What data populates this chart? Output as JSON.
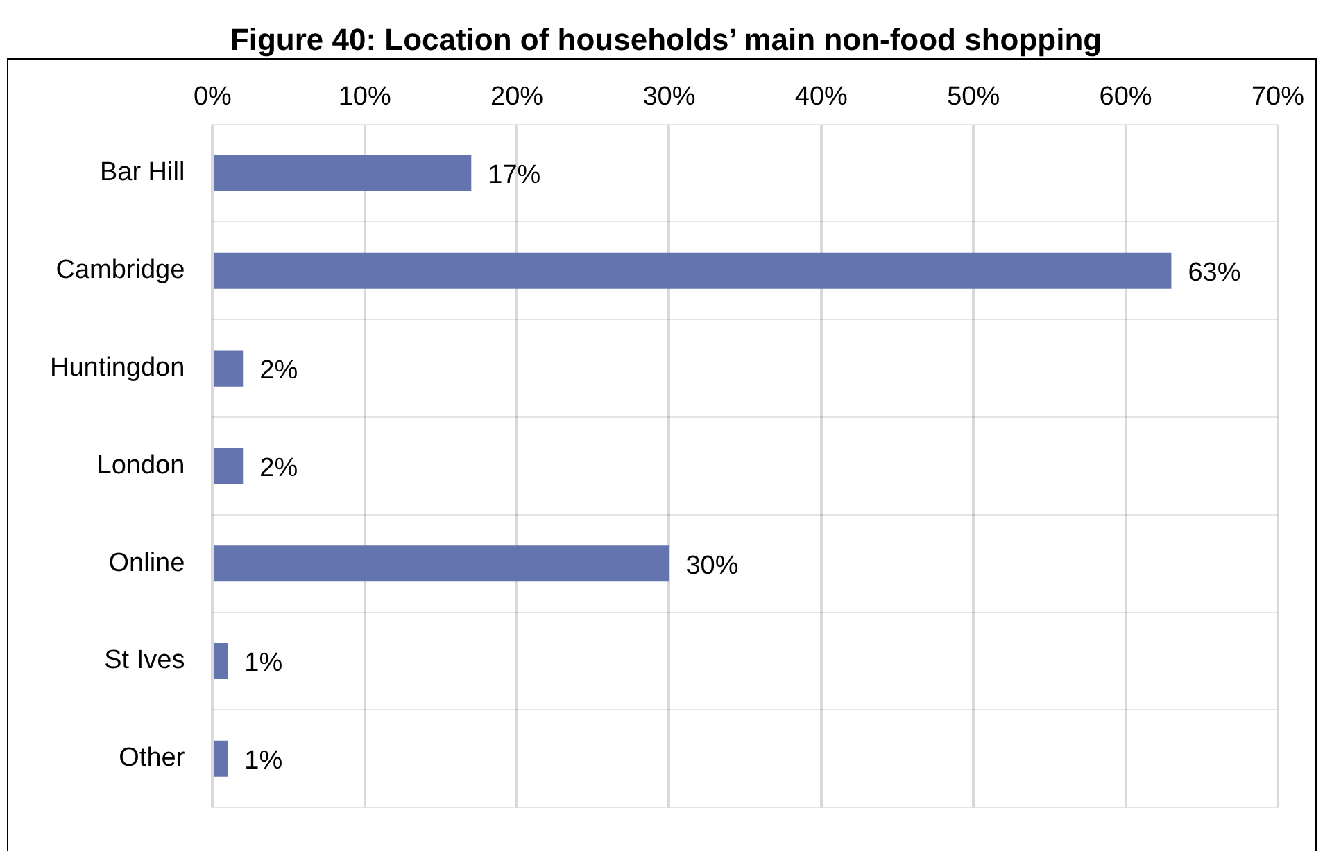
{
  "chart_data": {
    "type": "bar",
    "orientation": "horizontal",
    "title": "Figure 40: Location of households’ main non-food shopping",
    "categories": [
      "Bar Hill",
      "Cambridge",
      "Huntingdon",
      "London",
      "Online",
      "St Ives",
      "Other"
    ],
    "values": [
      17,
      63,
      2,
      2,
      30,
      1,
      1
    ],
    "value_labels": [
      "17%",
      "63%",
      "2%",
      "2%",
      "30%",
      "1%",
      "1%"
    ],
    "color": "#6474ae",
    "xlim": [
      0,
      70
    ],
    "xticks": [
      {
        "value": 0,
        "label": "0%"
      },
      {
        "value": 10,
        "label": "10%"
      },
      {
        "value": 20,
        "label": "20%"
      },
      {
        "value": 30,
        "label": "30%"
      },
      {
        "value": 40,
        "label": "40%"
      },
      {
        "value": 50,
        "label": "50%"
      },
      {
        "value": 60,
        "label": "60%"
      },
      {
        "value": 70,
        "label": "70%"
      }
    ],
    "grid": true,
    "legend": false
  }
}
